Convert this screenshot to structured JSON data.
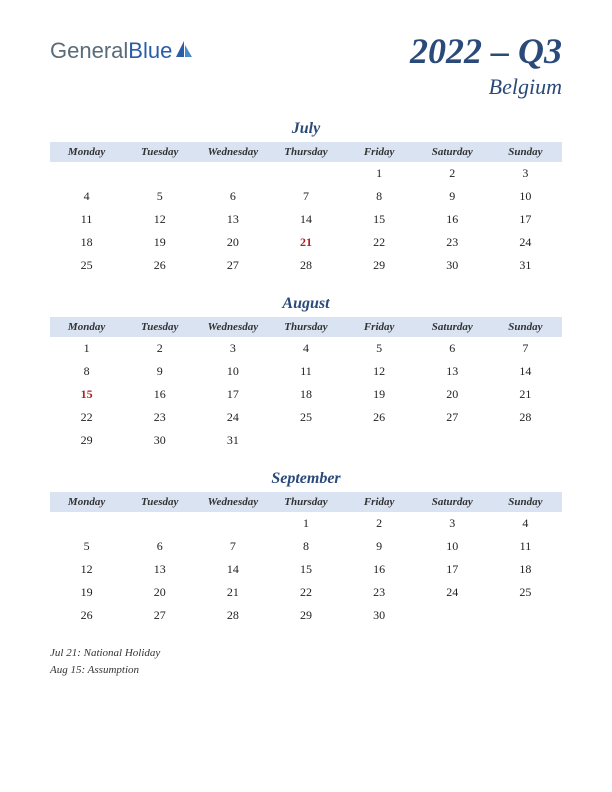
{
  "logo": {
    "part1": "General",
    "part2": "Blue"
  },
  "title": {
    "main": "2022 – Q3",
    "sub": "Belgium"
  },
  "day_headers": [
    "Monday",
    "Tuesday",
    "Wednesday",
    "Thursday",
    "Friday",
    "Saturday",
    "Sunday"
  ],
  "header_bg": "#d9e3f2",
  "title_color": "#2a4a7a",
  "holiday_color": "#b02020",
  "background": "#ffffff",
  "months": [
    {
      "name": "July",
      "weeks": [
        [
          "",
          "",
          "",
          "",
          "1",
          "2",
          "3"
        ],
        [
          "4",
          "5",
          "6",
          "7",
          "8",
          "9",
          "10"
        ],
        [
          "11",
          "12",
          "13",
          "14",
          "15",
          "16",
          "17"
        ],
        [
          "18",
          "19",
          "20",
          "21",
          "22",
          "23",
          "24"
        ],
        [
          "25",
          "26",
          "27",
          "28",
          "29",
          "30",
          "31"
        ]
      ],
      "holidays_at": [
        [
          3,
          3
        ]
      ]
    },
    {
      "name": "August",
      "weeks": [
        [
          "1",
          "2",
          "3",
          "4",
          "5",
          "6",
          "7"
        ],
        [
          "8",
          "9",
          "10",
          "11",
          "12",
          "13",
          "14"
        ],
        [
          "15",
          "16",
          "17",
          "18",
          "19",
          "20",
          "21"
        ],
        [
          "22",
          "23",
          "24",
          "25",
          "26",
          "27",
          "28"
        ],
        [
          "29",
          "30",
          "31",
          "",
          "",
          "",
          ""
        ]
      ],
      "holidays_at": [
        [
          2,
          0
        ]
      ]
    },
    {
      "name": "September",
      "weeks": [
        [
          "",
          "",
          "",
          "1",
          "2",
          "3",
          "4"
        ],
        [
          "5",
          "6",
          "7",
          "8",
          "9",
          "10",
          "11"
        ],
        [
          "12",
          "13",
          "14",
          "15",
          "16",
          "17",
          "18"
        ],
        [
          "19",
          "20",
          "21",
          "22",
          "23",
          "24",
          "25"
        ],
        [
          "26",
          "27",
          "28",
          "29",
          "30",
          "",
          ""
        ]
      ],
      "holidays_at": []
    }
  ],
  "holiday_notes": [
    "Jul 21: National Holiday",
    "Aug 15: Assumption"
  ]
}
